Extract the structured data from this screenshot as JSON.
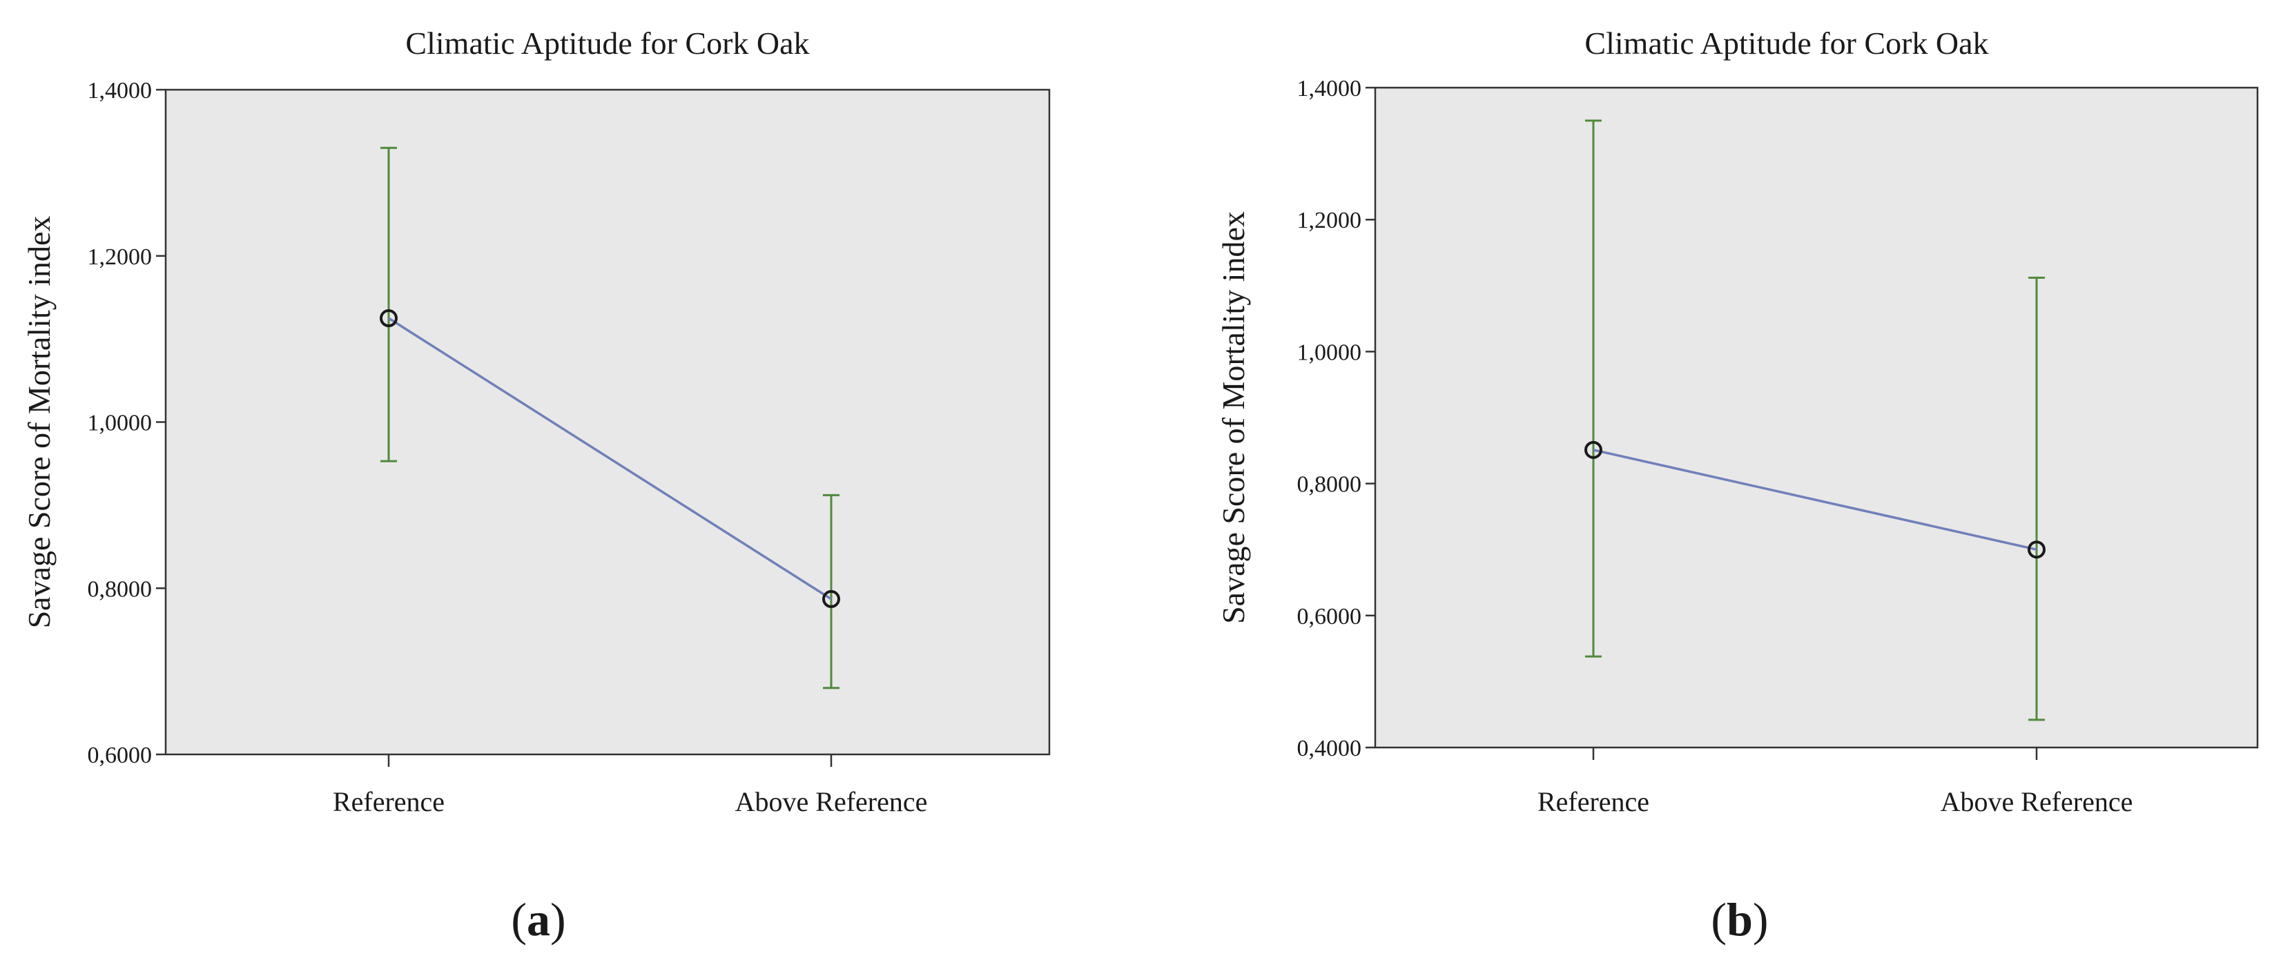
{
  "chart_data": [
    {
      "panel_label": "(a)",
      "panel_letter": "a",
      "type": "line",
      "title": "Climatic Aptitude for Cork Oak",
      "xlabel": "",
      "ylabel": "Savage Score of Mortality index",
      "ylim": [
        0.6,
        1.4
      ],
      "yticks": [
        0.6,
        0.8,
        1.0,
        1.2,
        1.4
      ],
      "ytick_labels": [
        "0,6000",
        "0,8000",
        "1,0000",
        "1,2000",
        "1,4000"
      ],
      "categories": [
        "Reference",
        "Above Reference"
      ],
      "series": [
        {
          "values": [
            1.125,
            0.787
          ],
          "error_low": [
            0.953,
            0.68
          ],
          "error_high": [
            1.33,
            0.912
          ]
        }
      ],
      "grid": false,
      "colors": {
        "line": "#6f80bb",
        "error_bar": "#4f8a3c",
        "plot_bg": "#e8e8e8",
        "axis": "#333333"
      }
    },
    {
      "panel_label": "(b)",
      "panel_letter": "b",
      "type": "line",
      "title": "Climatic Aptitude for Cork Oak",
      "xlabel": "",
      "ylabel": "Savage Score of Mortality index",
      "ylim": [
        0.4,
        1.4
      ],
      "yticks": [
        0.4,
        0.6,
        0.8,
        1.0,
        1.2,
        1.4
      ],
      "ytick_labels": [
        "0,4000",
        "0,6000",
        "0,8000",
        "1,0000",
        "1,2000",
        "1,4000"
      ],
      "categories": [
        "Reference",
        "Above Reference"
      ],
      "series": [
        {
          "values": [
            0.851,
            0.7
          ],
          "error_low": [
            0.538,
            0.442
          ],
          "error_high": [
            1.35,
            1.112
          ]
        }
      ],
      "grid": false,
      "colors": {
        "line": "#6f80bb",
        "error_bar": "#4f8a3c",
        "plot_bg": "#e8e8e8",
        "axis": "#333333"
      }
    }
  ]
}
